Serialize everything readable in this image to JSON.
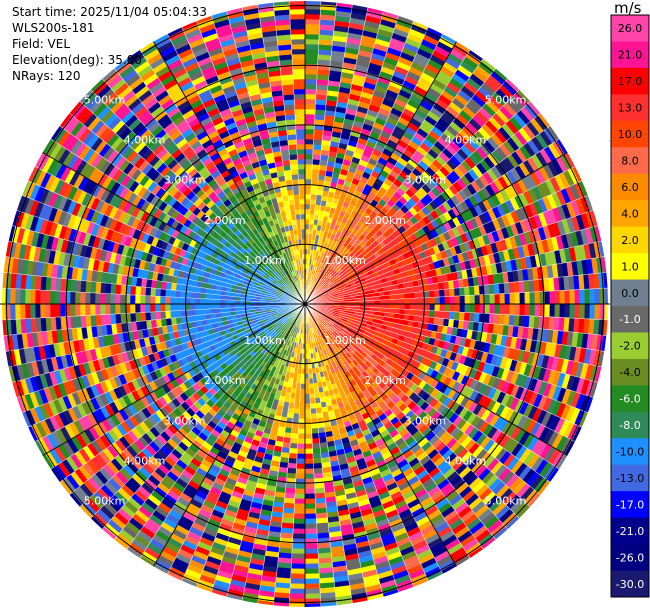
{
  "header": {
    "start_time": "Start time: 2025/11/04 05:04:33",
    "instrument": "WLS200s-181",
    "field": "Field: VEL",
    "elevation": "Elevation(deg): 35.00",
    "nrays": "NRays: 120"
  },
  "chart_data": {
    "type": "heatmap",
    "projection": "polar-ppi",
    "field": "VEL",
    "elevation_deg": 35.0,
    "n_rays": 120,
    "range_rings": [
      {
        "range_km": 1.0,
        "label": "1.00km"
      },
      {
        "range_km": 2.0,
        "label": "2.00km"
      },
      {
        "range_km": 3.0,
        "label": "3.00km"
      },
      {
        "range_km": 4.0,
        "label": "4.00km"
      },
      {
        "range_km": 5.0,
        "label": "5.00km"
      }
    ],
    "max_range_km": 5.0,
    "colorbar": {
      "unit": "m/s",
      "vmin": -30.0,
      "vmax": 30.0,
      "ticks": [
        "26.0",
        "21.0",
        "17.0",
        "13.0",
        "10.0",
        "8.0",
        "6.0",
        "4.0",
        "2.0",
        "1.0",
        "0.0",
        "-1.0",
        "-2.0",
        "-4.0",
        "-6.0",
        "-8.0",
        "-10.0",
        "-13.0",
        "-17.0",
        "-21.0",
        "-26.0",
        "-30.0"
      ],
      "colors": [
        "#ff44aa",
        "#ff1493",
        "#ff0000",
        "#ff3030",
        "#ff4500",
        "#ff6a4a",
        "#ff8c00",
        "#ffa500",
        "#ffd700",
        "#ffff00",
        "#708090",
        "#696969",
        "#9acd32",
        "#6b8e23",
        "#228b22",
        "#2e8b57",
        "#1e90ff",
        "#4169e1",
        "#0000ff",
        "#00008b",
        "#000080",
        "#191970"
      ]
    },
    "velocity_pattern": {
      "near_range_km": 2.3,
      "approaching_sector": "west (blue/green, -17 to -4 m/s)",
      "receding_sector": "east (orange/red, 8 to 13 m/s)",
      "zero_line": "north-south (yellow/gray, -1 to 4 m/s)",
      "far_range": "noise (mixed colors)"
    }
  }
}
